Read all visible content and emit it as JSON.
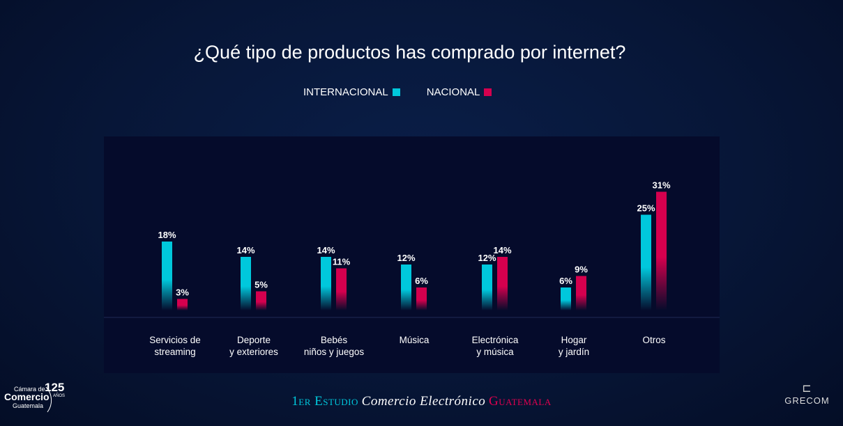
{
  "chart_data": {
    "type": "bar",
    "title": "¿Qué tipo de productos has comprado por internet?",
    "categories": [
      [
        "Servicios de",
        "streaming"
      ],
      [
        "Deporte",
        "y exteriores"
      ],
      [
        "Bebés",
        "niños y juegos"
      ],
      [
        "Música",
        ""
      ],
      [
        "Electrónica",
        "y música"
      ],
      [
        "Hogar",
        "y jardín"
      ],
      [
        "Otros",
        ""
      ]
    ],
    "series": [
      {
        "name": "INTERNACIONAL",
        "color": "#00c8dc",
        "values": [
          18,
          14,
          14,
          12,
          12,
          6,
          25
        ]
      },
      {
        "name": "NACIONAL",
        "color": "#d5004e",
        "values": [
          3,
          5,
          11,
          6,
          14,
          9,
          31
        ]
      }
    ],
    "unit": "%",
    "legend_position": "top",
    "grid": false
  },
  "footer": {
    "part1": "1er Estudio",
    "part2": "Comercio Electrónico",
    "part3": "Guatemala"
  },
  "logos": {
    "left": "Cámara de Comercio de Guatemala 125 AÑOS",
    "right": "GRECOM"
  }
}
